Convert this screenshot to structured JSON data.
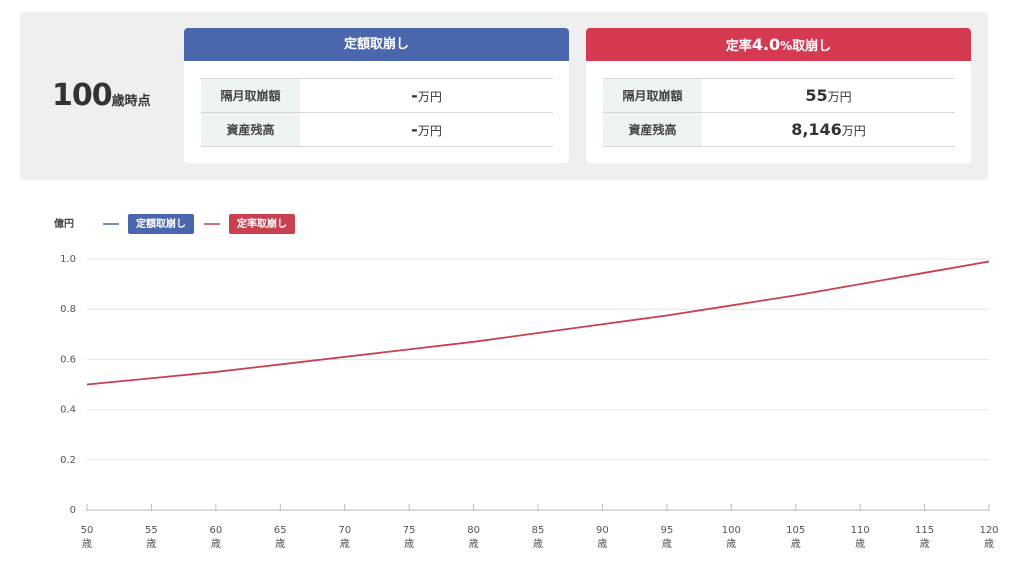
{
  "summary": {
    "age": "100",
    "age_suffix": "歳時点",
    "cards": [
      {
        "title_parts": [
          "定額取崩し"
        ],
        "rows": [
          {
            "label": "隔月取崩額",
            "value": "-",
            "unit": "万円"
          },
          {
            "label": "資産残高",
            "value": "-",
            "unit": "万円"
          }
        ]
      },
      {
        "title_parts": [
          "定率",
          "4.0",
          "%",
          "取崩し"
        ],
        "rows": [
          {
            "label": "隔月取崩額",
            "value": "55",
            "unit": "万円"
          },
          {
            "label": "資産残高",
            "value": "8,146",
            "unit": "万円"
          }
        ]
      }
    ]
  },
  "chart_data": {
    "type": "line",
    "y_label": "億円",
    "x_tick_unit": "歳",
    "x": [
      50,
      55,
      60,
      65,
      70,
      75,
      80,
      85,
      90,
      95,
      100,
      105,
      110,
      115,
      120
    ],
    "series": [
      {
        "name": "定額取崩し",
        "color": "#4a66ad",
        "values": [
          null,
          null,
          null,
          null,
          null,
          null,
          null,
          null,
          null,
          null,
          null,
          null,
          null,
          null,
          null
        ]
      },
      {
        "name": "定率取崩し",
        "color": "#c9404f",
        "values": [
          0.5,
          0.525,
          0.55,
          0.58,
          0.61,
          0.64,
          0.67,
          0.705,
          0.74,
          0.775,
          0.815,
          0.855,
          0.9,
          0.945,
          0.99
        ]
      }
    ],
    "xlim": [
      50,
      120
    ],
    "xticks": [
      50,
      55,
      60,
      65,
      70,
      75,
      80,
      85,
      90,
      95,
      100,
      105,
      110,
      115,
      120
    ],
    "ylim": [
      0,
      1
    ],
    "yticks": [
      0,
      0.2,
      0.4,
      0.6,
      0.8,
      {
        "value": 1,
        "label": "1.0"
      }
    ],
    "grid": true
  }
}
